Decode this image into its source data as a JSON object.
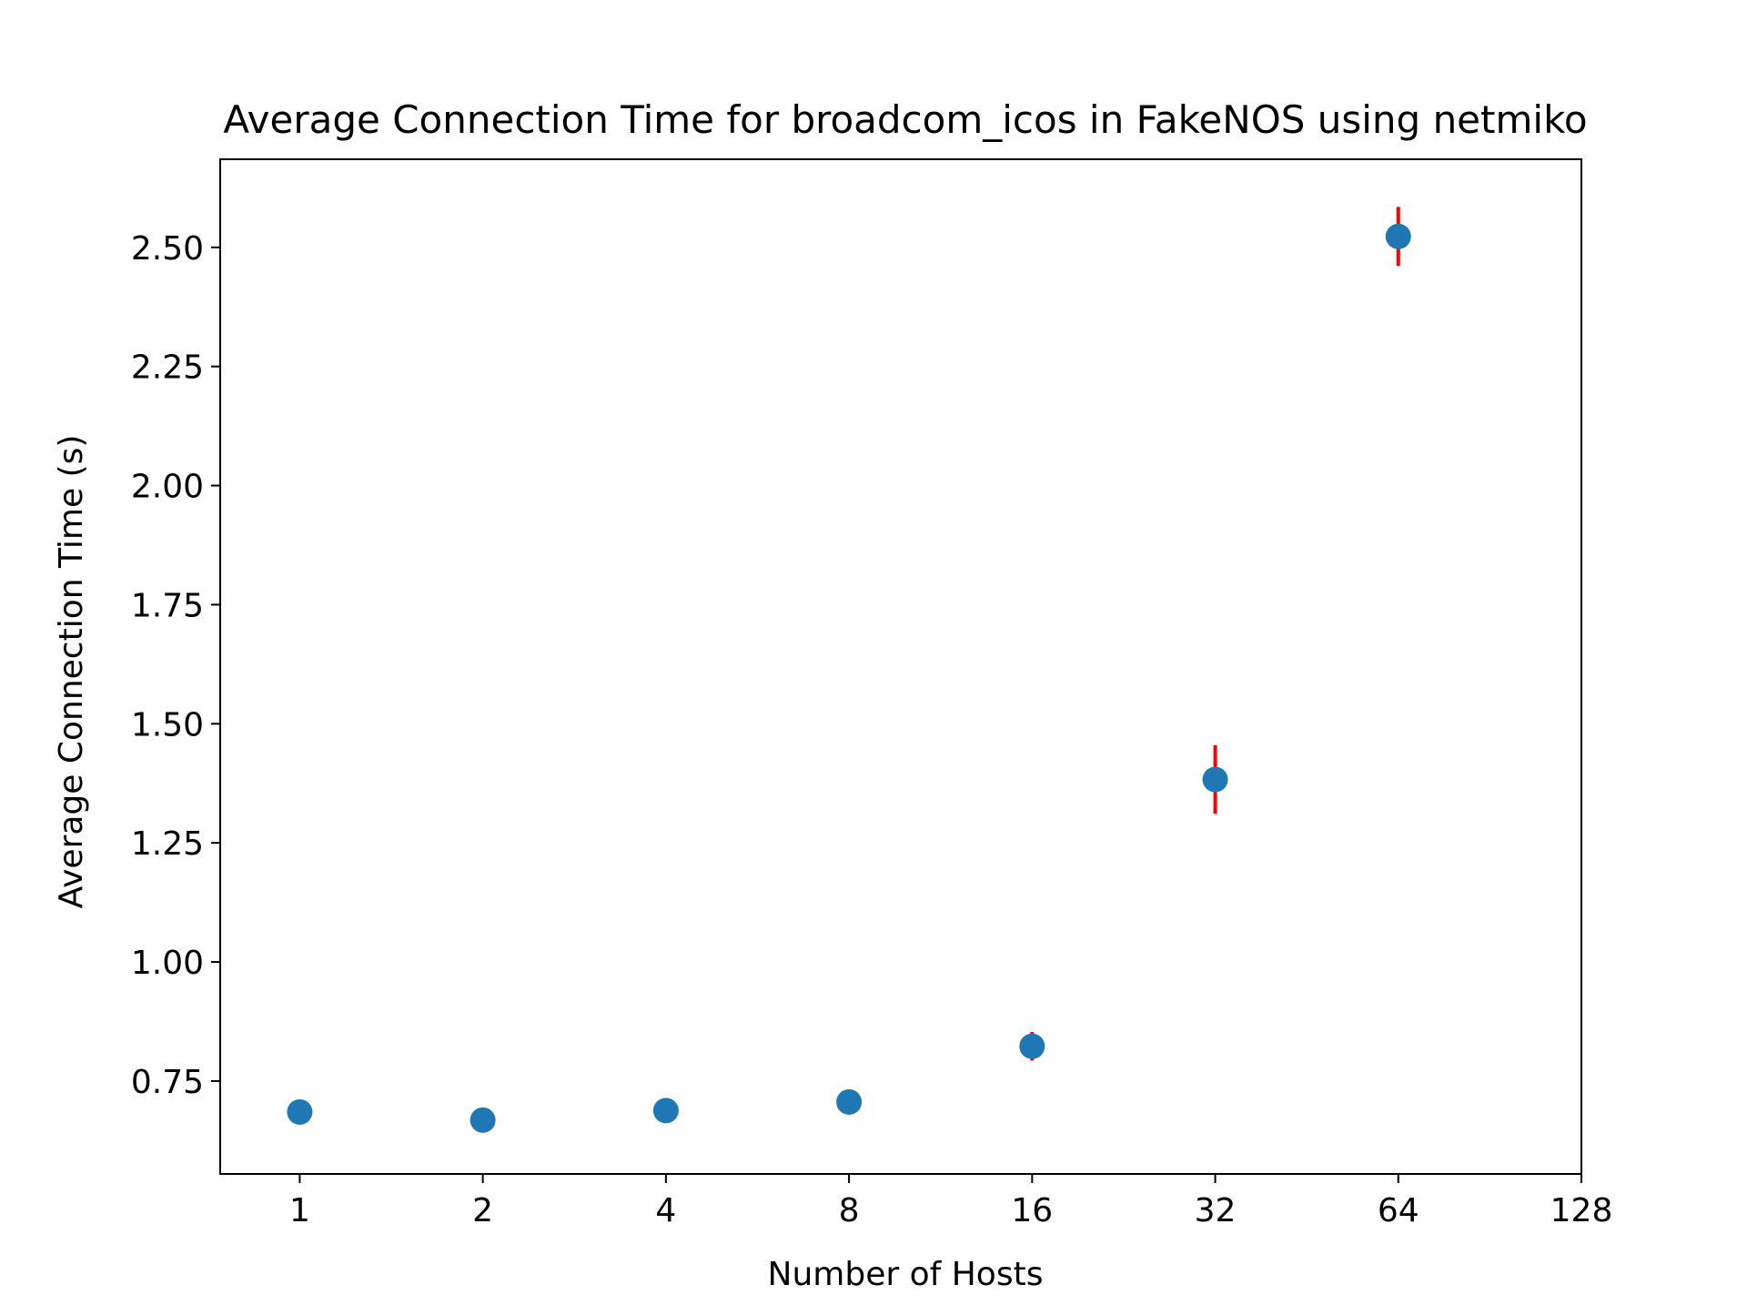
{
  "chart_data": {
    "type": "scatter",
    "title": "Average Connection Time for broadcom_icos in FakeNOS using netmiko",
    "xlabel": "Number of Hosts",
    "ylabel": "Average Connection Time (s)",
    "x_scale": "log2",
    "xlim": [
      0.74,
      128
    ],
    "ylim": [
      0.555,
      2.685
    ],
    "x_ticks": [
      1,
      2,
      4,
      8,
      16,
      32,
      64,
      128
    ],
    "x_tick_labels": [
      "1",
      "2",
      "4",
      "8",
      "16",
      "32",
      "64",
      "128"
    ],
    "y_ticks": [
      0.75,
      1.0,
      1.25,
      1.5,
      1.75,
      2.0,
      2.25,
      2.5
    ],
    "y_tick_labels": [
      "0.75",
      "1.00",
      "1.25",
      "1.50",
      "1.75",
      "2.00",
      "2.25",
      "2.50"
    ],
    "grid": false,
    "points": [
      {
        "x": 1,
        "y": 0.685,
        "err": 0.005
      },
      {
        "x": 2,
        "y": 0.668,
        "err": 0.004
      },
      {
        "x": 4,
        "y": 0.688,
        "err": 0.005
      },
      {
        "x": 8,
        "y": 0.706,
        "err": 0.006
      },
      {
        "x": 16,
        "y": 0.823,
        "err": 0.03
      },
      {
        "x": 32,
        "y": 1.383,
        "err": 0.072
      },
      {
        "x": 64,
        "y": 2.523,
        "err": 0.062
      }
    ],
    "colors": {
      "marker": "#1f77b4",
      "errorbar": "#ff0000",
      "axes": "#000000"
    }
  }
}
